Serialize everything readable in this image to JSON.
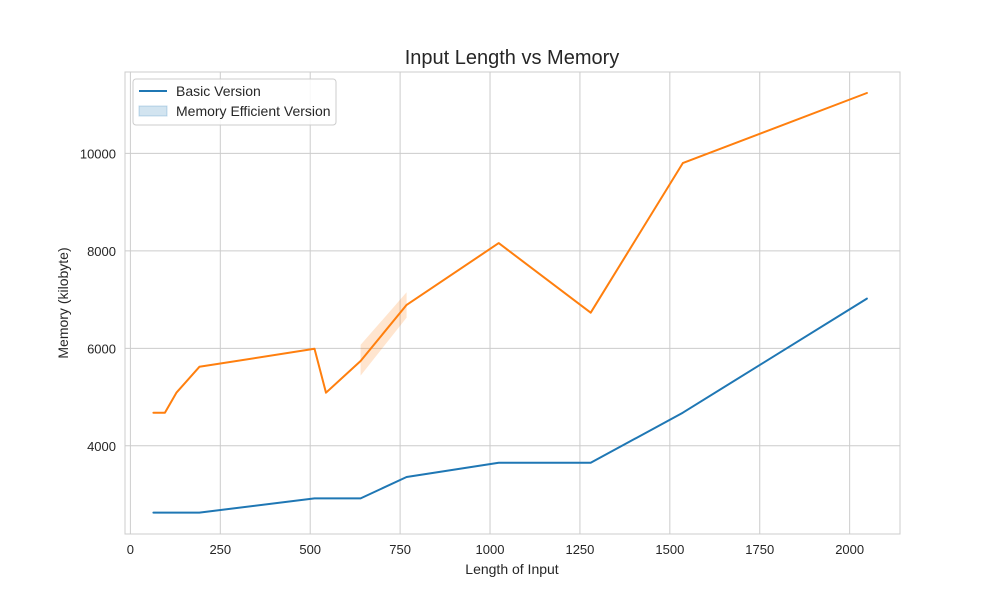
{
  "chart_data": {
    "type": "line",
    "title": "Input Length vs Memory",
    "xlabel": "Length of Input",
    "ylabel": "Memory (kilobyte)",
    "xlim": [
      -15,
      2140
    ],
    "ylim": [
      2190,
      11670
    ],
    "xticks": [
      0,
      250,
      500,
      750,
      1000,
      1250,
      1500,
      1750,
      2000
    ],
    "yticks": [
      4000,
      6000,
      8000,
      10000
    ],
    "grid": true,
    "legend_position": "top-left",
    "legend": [
      {
        "label": "Basic Version",
        "marker": "line",
        "color": "#1f77b4"
      },
      {
        "label": "Memory Efficient Version",
        "marker": "band",
        "color": "#1f77b4"
      }
    ],
    "series": [
      {
        "color": "#1f77b4",
        "x": [
          64,
          192,
          512,
          640,
          768,
          1024,
          1280,
          1536,
          2048
        ],
        "y": [
          2630,
          2630,
          2920,
          2920,
          3360,
          3650,
          3650,
          4680,
          7020
        ]
      },
      {
        "color": "#ff7f0e",
        "x": [
          64,
          96,
          128,
          192,
          512,
          544,
          640,
          768,
          1024,
          1280,
          1536,
          2048
        ],
        "y": [
          4680,
          4680,
          5090,
          5620,
          5990,
          5090,
          5740,
          6890,
          8160,
          6730,
          9800,
          11240
        ],
        "band": {
          "x": [
            640,
            768
          ],
          "low": [
            5440,
            6630
          ],
          "high": [
            6070,
            7150
          ]
        }
      }
    ]
  }
}
